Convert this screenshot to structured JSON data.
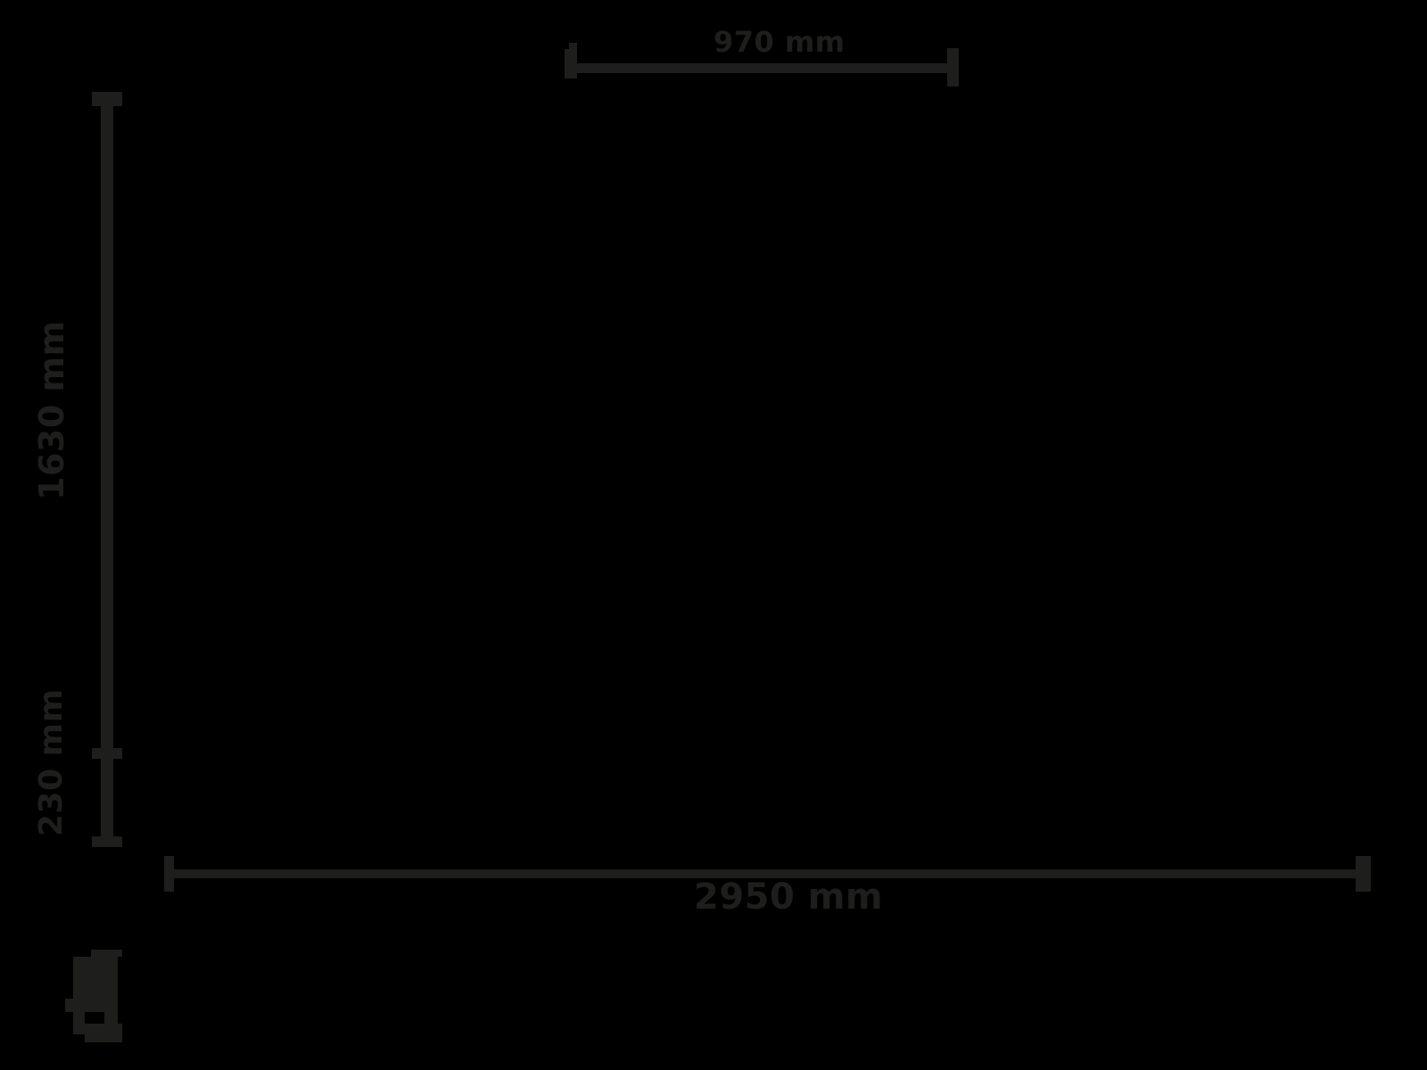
{
  "colors": {
    "background": "#000000",
    "ink": "#1e1e1c"
  },
  "drawing": {
    "type": "technical-drawing-dimensions",
    "unit": "mm",
    "dimensions": {
      "top": {
        "label": "970 mm"
      },
      "bottom": {
        "label": "2950 mm"
      },
      "left_upper": {
        "label": "1630 mm"
      },
      "left_lower": {
        "label": "230 mm"
      }
    },
    "stamp_icon": "illegible-stamp-mark"
  }
}
